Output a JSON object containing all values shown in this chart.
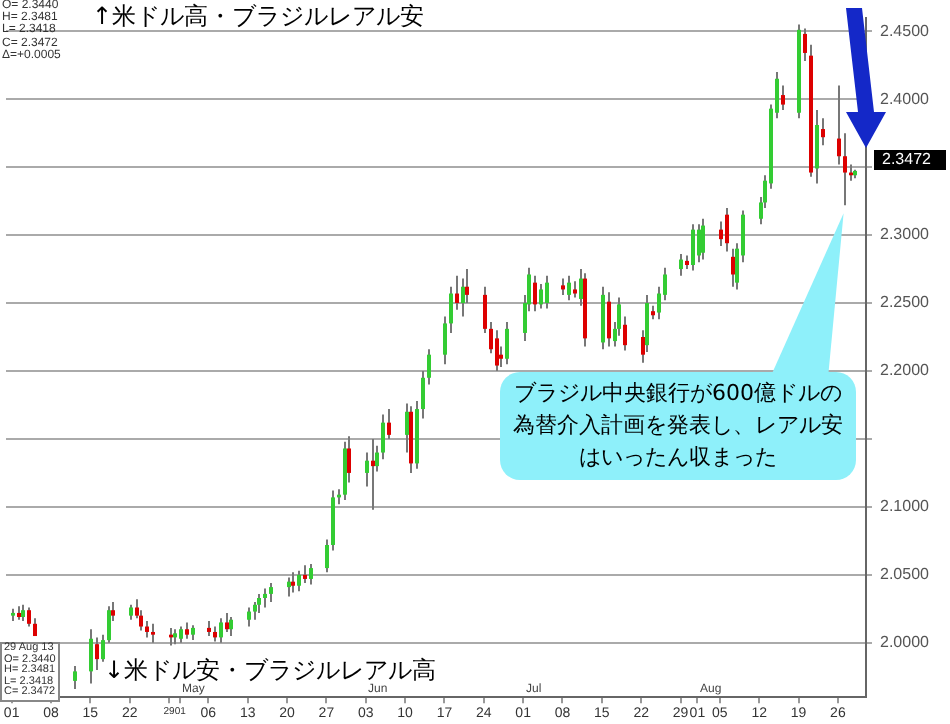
{
  "chart_data": {
    "type": "candlestick",
    "x": [
      "--04-01",
      "--04-02",
      "--04-03",
      "--04-04",
      "--04-05",
      "--04-12",
      "--04-15",
      "--04-16",
      "--04-17",
      "--04-18",
      "--04-19",
      "--04-22",
      "--04-23",
      "--04-24",
      "--04-25",
      "--04-26",
      "--04-29",
      "--04-30",
      "--05-01",
      "--05-02",
      "--05-03",
      "--05-06",
      "--05-07",
      "--05-08",
      "--05-09",
      "--05-10",
      "--05-13",
      "--05-14",
      "--05-15",
      "--05-16",
      "--05-17",
      "--05-20",
      "--05-21",
      "--05-22",
      "--05-23",
      "--05-24",
      "--05-27",
      "--05-28",
      "--05-29",
      "--05-30",
      "--05-31",
      "--06-03",
      "--06-04",
      "--06-05",
      "--06-06",
      "--06-07",
      "--06-10",
      "--06-11",
      "--06-12",
      "--06-13",
      "--06-14",
      "--06-17",
      "--06-18",
      "--06-19",
      "--06-20",
      "--06-21",
      "--06-24",
      "--06-25",
      "--06-26",
      "--06-27",
      "--06-28",
      "--07-01",
      "--07-02",
      "--07-03",
      "--07-04",
      "--07-05",
      "--07-08",
      "--07-09",
      "--07-10",
      "--07-11",
      "--07-12",
      "--07-15",
      "--07-16",
      "--07-17",
      "--07-18",
      "--07-19",
      "--07-22",
      "--07-23",
      "--07-24",
      "--07-25",
      "--07-26",
      "--07-29",
      "--07-30",
      "--07-31",
      "--08-01",
      "--08-02",
      "--08-05",
      "--08-06",
      "--08-07",
      "--08-08",
      "--08-09",
      "--08-12",
      "--08-13",
      "--08-14",
      "--08-15",
      "--08-16",
      "--08-19",
      "--08-20",
      "--08-21",
      "--08-22",
      "--08-23",
      "--08-26",
      "--08-27",
      "--08-28",
      "--08-29"
    ],
    "ohlc": [
      [
        2.02,
        2.025,
        2.016,
        2.022
      ],
      [
        2.022,
        2.027,
        2.017,
        2.019
      ],
      [
        2.019,
        2.028,
        2.016,
        2.024
      ],
      [
        2.024,
        2.026,
        2.012,
        2.014
      ],
      [
        2.014,
        2.018,
        2.005,
        2.005
      ],
      [
        1.972,
        1.983,
        1.966,
        1.979
      ],
      [
        1.979,
        2.01,
        1.97,
        2.003
      ],
      [
        1.999,
        2.004,
        1.98,
        1.988
      ],
      [
        1.988,
        2.006,
        1.986,
        2.002
      ],
      [
        2.002,
        2.027,
        2.0,
        2.024
      ],
      [
        2.024,
        2.03,
        2.016,
        2.02
      ],
      [
        2.02,
        2.028,
        2.017,
        2.026
      ],
      [
        2.026,
        2.032,
        2.018,
        2.02
      ],
      [
        2.02,
        2.024,
        2.009,
        2.012
      ],
      [
        2.012,
        2.016,
        2.004,
        2.008
      ],
      [
        2.008,
        2.014,
        2.0,
        2.006
      ],
      [
        2.006,
        2.011,
        1.998,
        2.004
      ],
      [
        2.004,
        2.01,
        1.999,
        2.007
      ],
      [
        2.003,
        2.012,
        2.0,
        2.01
      ],
      [
        2.01,
        2.015,
        2.003,
        2.006
      ],
      [
        2.006,
        2.013,
        2.002,
        2.011
      ],
      [
        2.011,
        2.016,
        2.005,
        2.008
      ],
      [
        2.008,
        2.012,
        2.001,
        2.004
      ],
      [
        2.004,
        2.018,
        2.0,
        2.015
      ],
      [
        2.015,
        2.022,
        2.008,
        2.01
      ],
      [
        2.01,
        2.019,
        2.005,
        2.017
      ],
      [
        2.017,
        2.026,
        2.012,
        2.023
      ],
      [
        2.023,
        2.03,
        2.017,
        2.028
      ],
      [
        2.028,
        2.036,
        2.022,
        2.033
      ],
      [
        2.033,
        2.04,
        2.026,
        2.036
      ],
      [
        2.036,
        2.044,
        2.03,
        2.041
      ],
      [
        2.041,
        2.048,
        2.034,
        2.045
      ],
      [
        2.045,
        2.052,
        2.037,
        2.042
      ],
      [
        2.042,
        2.053,
        2.038,
        2.05
      ],
      [
        2.05,
        2.057,
        2.044,
        2.047
      ],
      [
        2.047,
        2.058,
        2.043,
        2.055
      ],
      [
        2.055,
        2.076,
        2.052,
        2.072
      ],
      [
        2.072,
        2.112,
        2.068,
        2.107
      ],
      [
        2.107,
        2.113,
        2.102,
        2.109
      ],
      [
        2.109,
        2.148,
        2.105,
        2.143
      ],
      [
        2.143,
        2.152,
        2.118,
        2.125
      ],
      [
        2.125,
        2.14,
        2.115,
        2.134
      ],
      [
        2.134,
        2.15,
        2.098,
        2.13
      ],
      [
        2.13,
        2.145,
        2.126,
        2.14
      ],
      [
        2.14,
        2.168,
        2.135,
        2.162
      ],
      [
        2.162,
        2.172,
        2.15,
        2.153
      ],
      [
        2.153,
        2.176,
        2.14,
        2.17
      ],
      [
        2.17,
        2.174,
        2.125,
        2.132
      ],
      [
        2.132,
        2.178,
        2.128,
        2.172
      ],
      [
        2.172,
        2.2,
        2.165,
        2.195
      ],
      [
        2.195,
        2.216,
        2.19,
        2.212
      ],
      [
        2.212,
        2.24,
        2.205,
        2.235
      ],
      [
        2.235,
        2.262,
        2.228,
        2.257
      ],
      [
        2.257,
        2.27,
        2.245,
        2.25
      ],
      [
        2.25,
        2.268,
        2.24,
        2.262
      ],
      [
        2.262,
        2.275,
        2.25,
        2.256
      ],
      [
        2.256,
        2.262,
        2.228,
        2.231
      ],
      [
        2.231,
        2.236,
        2.213,
        2.216
      ],
      [
        2.224,
        2.23,
        2.2,
        2.204
      ],
      [
        2.212,
        2.218,
        2.203,
        2.209
      ],
      [
        2.209,
        2.236,
        2.205,
        2.231
      ],
      [
        2.228,
        2.256,
        2.222,
        2.25
      ],
      [
        2.249,
        2.276,
        2.244,
        2.271
      ],
      [
        2.265,
        2.27,
        2.244,
        2.249
      ],
      [
        2.249,
        2.264,
        2.246,
        2.26
      ],
      [
        2.25,
        2.27,
        2.246,
        2.265
      ],
      [
        2.263,
        2.268,
        2.256,
        2.26
      ],
      [
        2.256,
        2.27,
        2.252,
        2.265
      ],
      [
        2.26,
        2.266,
        2.254,
        2.257
      ],
      [
        2.253,
        2.275,
        2.248,
        2.268
      ],
      [
        2.268,
        2.272,
        2.218,
        2.224
      ],
      [
        2.221,
        2.262,
        2.216,
        2.256
      ],
      [
        2.251,
        2.258,
        2.218,
        2.224
      ],
      [
        2.222,
        2.236,
        2.218,
        2.231
      ],
      [
        2.231,
        2.254,
        2.226,
        2.249
      ],
      [
        2.234,
        2.24,
        2.215,
        2.219
      ],
      [
        2.225,
        2.23,
        2.206,
        2.212
      ],
      [
        2.219,
        2.256,
        2.214,
        2.25
      ],
      [
        2.244,
        2.248,
        2.238,
        2.241
      ],
      [
        2.243,
        2.262,
        2.238,
        2.257
      ],
      [
        2.256,
        2.276,
        2.252,
        2.271
      ],
      [
        2.275,
        2.286,
        2.27,
        2.282
      ],
      [
        2.281,
        2.285,
        2.275,
        2.278
      ],
      [
        2.278,
        2.308,
        2.274,
        2.304
      ],
      [
        2.285,
        2.308,
        2.28,
        2.304
      ],
      [
        2.287,
        2.312,
        2.282,
        2.307
      ],
      [
        2.304,
        2.31,
        2.292,
        2.297
      ],
      [
        2.315,
        2.32,
        2.288,
        2.294
      ],
      [
        2.284,
        2.29,
        2.262,
        2.271
      ],
      [
        2.265,
        2.294,
        2.26,
        2.29
      ],
      [
        2.285,
        2.318,
        2.28,
        2.315
      ],
      [
        2.312,
        2.328,
        2.308,
        2.324
      ],
      [
        2.324,
        2.344,
        2.32,
        2.34
      ],
      [
        2.338,
        2.396,
        2.334,
        2.393
      ],
      [
        2.39,
        2.42,
        2.386,
        2.415
      ],
      [
        2.403,
        2.41,
        2.392,
        2.396
      ],
      [
        2.39,
        2.455,
        2.386,
        2.451
      ],
      [
        2.448,
        2.452,
        2.428,
        2.434
      ],
      [
        2.432,
        2.44,
        2.343,
        2.346
      ],
      [
        2.349,
        2.392,
        2.338,
        2.381
      ],
      [
        2.378,
        2.386,
        2.366,
        2.372
      ],
      [
        2.371,
        2.41,
        2.352,
        2.358
      ],
      [
        2.358,
        2.375,
        2.322,
        2.346
      ],
      [
        2.346,
        2.352,
        2.34,
        2.344
      ],
      [
        2.344,
        2.3481,
        2.3418,
        2.3472
      ]
    ],
    "colors": [
      "#33cc33",
      "#dd0000",
      "#33cc33",
      "#dd0000",
      "#dd0000",
      "#33cc33",
      "#33cc33",
      "#dd0000",
      "#33cc33",
      "#33cc33",
      "#dd0000",
      "#33cc33",
      "#dd0000",
      "#dd0000",
      "#dd0000",
      "#dd0000",
      "#dd0000",
      "#33cc33",
      "#33cc33",
      "#dd0000",
      "#33cc33",
      "#dd0000",
      "#dd0000",
      "#33cc33",
      "#dd0000",
      "#33cc33",
      "#33cc33",
      "#33cc33",
      "#33cc33",
      "#33cc33",
      "#33cc33",
      "#33cc33",
      "#dd0000",
      "#33cc33",
      "#dd0000",
      "#33cc33",
      "#33cc33",
      "#33cc33",
      "#33cc33",
      "#33cc33",
      "#dd0000",
      "#33cc33",
      "#dd0000",
      "#33cc33",
      "#33cc33",
      "#dd0000",
      "#33cc33",
      "#dd0000",
      "#33cc33",
      "#33cc33",
      "#33cc33",
      "#33cc33",
      "#33cc33",
      "#dd0000",
      "#33cc33",
      "#dd0000",
      "#dd0000",
      "#dd0000",
      "#dd0000",
      "#dd0000",
      "#33cc33",
      "#33cc33",
      "#33cc33",
      "#dd0000",
      "#33cc33",
      "#33cc33",
      "#dd0000",
      "#33cc33",
      "#dd0000",
      "#33cc33",
      "#dd0000",
      "#33cc33",
      "#dd0000",
      "#33cc33",
      "#33cc33",
      "#dd0000",
      "#dd0000",
      "#33cc33",
      "#dd0000",
      "#33cc33",
      "#33cc33",
      "#33cc33",
      "#dd0000",
      "#33cc33",
      "#33cc33",
      "#33cc33",
      "#dd0000",
      "#dd0000",
      "#dd0000",
      "#33cc33",
      "#33cc33",
      "#33cc33",
      "#33cc33",
      "#33cc33",
      "#33cc33",
      "#dd0000",
      "#33cc33",
      "#dd0000",
      "#dd0000",
      "#33cc33",
      "#dd0000",
      "#dd0000",
      "#dd0000",
      "#dd0000",
      "#33cc33"
    ],
    "xlim": [
      "--03-31",
      "--08-31"
    ],
    "xticks": [
      {
        "value": "--04-01",
        "label": "01"
      },
      {
        "value": "--04-08",
        "label": "08"
      },
      {
        "value": "--04-15",
        "label": "15"
      },
      {
        "value": "--04-22",
        "label": "22"
      },
      {
        "value": "--04-29",
        "label": "29"
      },
      {
        "value": "--05-01",
        "label": "01"
      },
      {
        "value": "--05-06",
        "label": "06"
      },
      {
        "value": "--05-13",
        "label": "13"
      },
      {
        "value": "--05-20",
        "label": "20"
      },
      {
        "value": "--05-27",
        "label": "27"
      },
      {
        "value": "--06-03",
        "label": "03"
      },
      {
        "value": "--06-10",
        "label": "10"
      },
      {
        "value": "--06-17",
        "label": "17"
      },
      {
        "value": "--06-24",
        "label": "24"
      },
      {
        "value": "--07-01",
        "label": "01"
      },
      {
        "value": "--07-08",
        "label": "08"
      },
      {
        "value": "--07-15",
        "label": "15"
      },
      {
        "value": "--07-22",
        "label": "22"
      },
      {
        "value": "--07-29",
        "label": "29"
      },
      {
        "value": "--08-01",
        "label": "01"
      },
      {
        "value": "--08-05",
        "label": "05"
      },
      {
        "value": "--08-12",
        "label": "12"
      },
      {
        "value": "--08-19",
        "label": "19"
      },
      {
        "value": "--08-26",
        "label": "26"
      }
    ],
    "ylim": [
      1.96,
      2.46
    ],
    "yticks": [
      {
        "value": 2.0,
        "label": "2.0000"
      },
      {
        "value": 2.05,
        "label": "2.0500"
      },
      {
        "value": 2.1,
        "label": "2.1000"
      },
      {
        "value": 2.15,
        "label": null
      },
      {
        "value": 2.2,
        "label": "2.2000"
      },
      {
        "value": 2.25,
        "label": "2.2500"
      },
      {
        "value": 2.3,
        "label": "2.3000"
      },
      {
        "value": 2.35,
        "label": null
      },
      {
        "value": 2.4,
        "label": "2.4000"
      },
      {
        "value": 2.45,
        "label": "2.4500"
      }
    ],
    "grid": "y",
    "annotations": [
      "↑米ドル高・ブラジルレアル安",
      "↓米ドル安・ブラジルレアル高",
      "O= 2.3440\nH= 2.3481\nL= 2.3418\nC= 2.3472\nΔ=+0.0005",
      "29 Aug 13\nO= 2.3440\nH= 2.3481\nL= 2.3418\nC= 2.3472",
      "May",
      "Jun",
      "Jul",
      "Aug",
      {
        "text": "ブラジル中央銀行が600億ドルの為替介入計画を発表し、レアル安はいったん収まった",
        "x": "--08-27",
        "y": 2.322
      },
      "2.3472"
    ]
  }
}
